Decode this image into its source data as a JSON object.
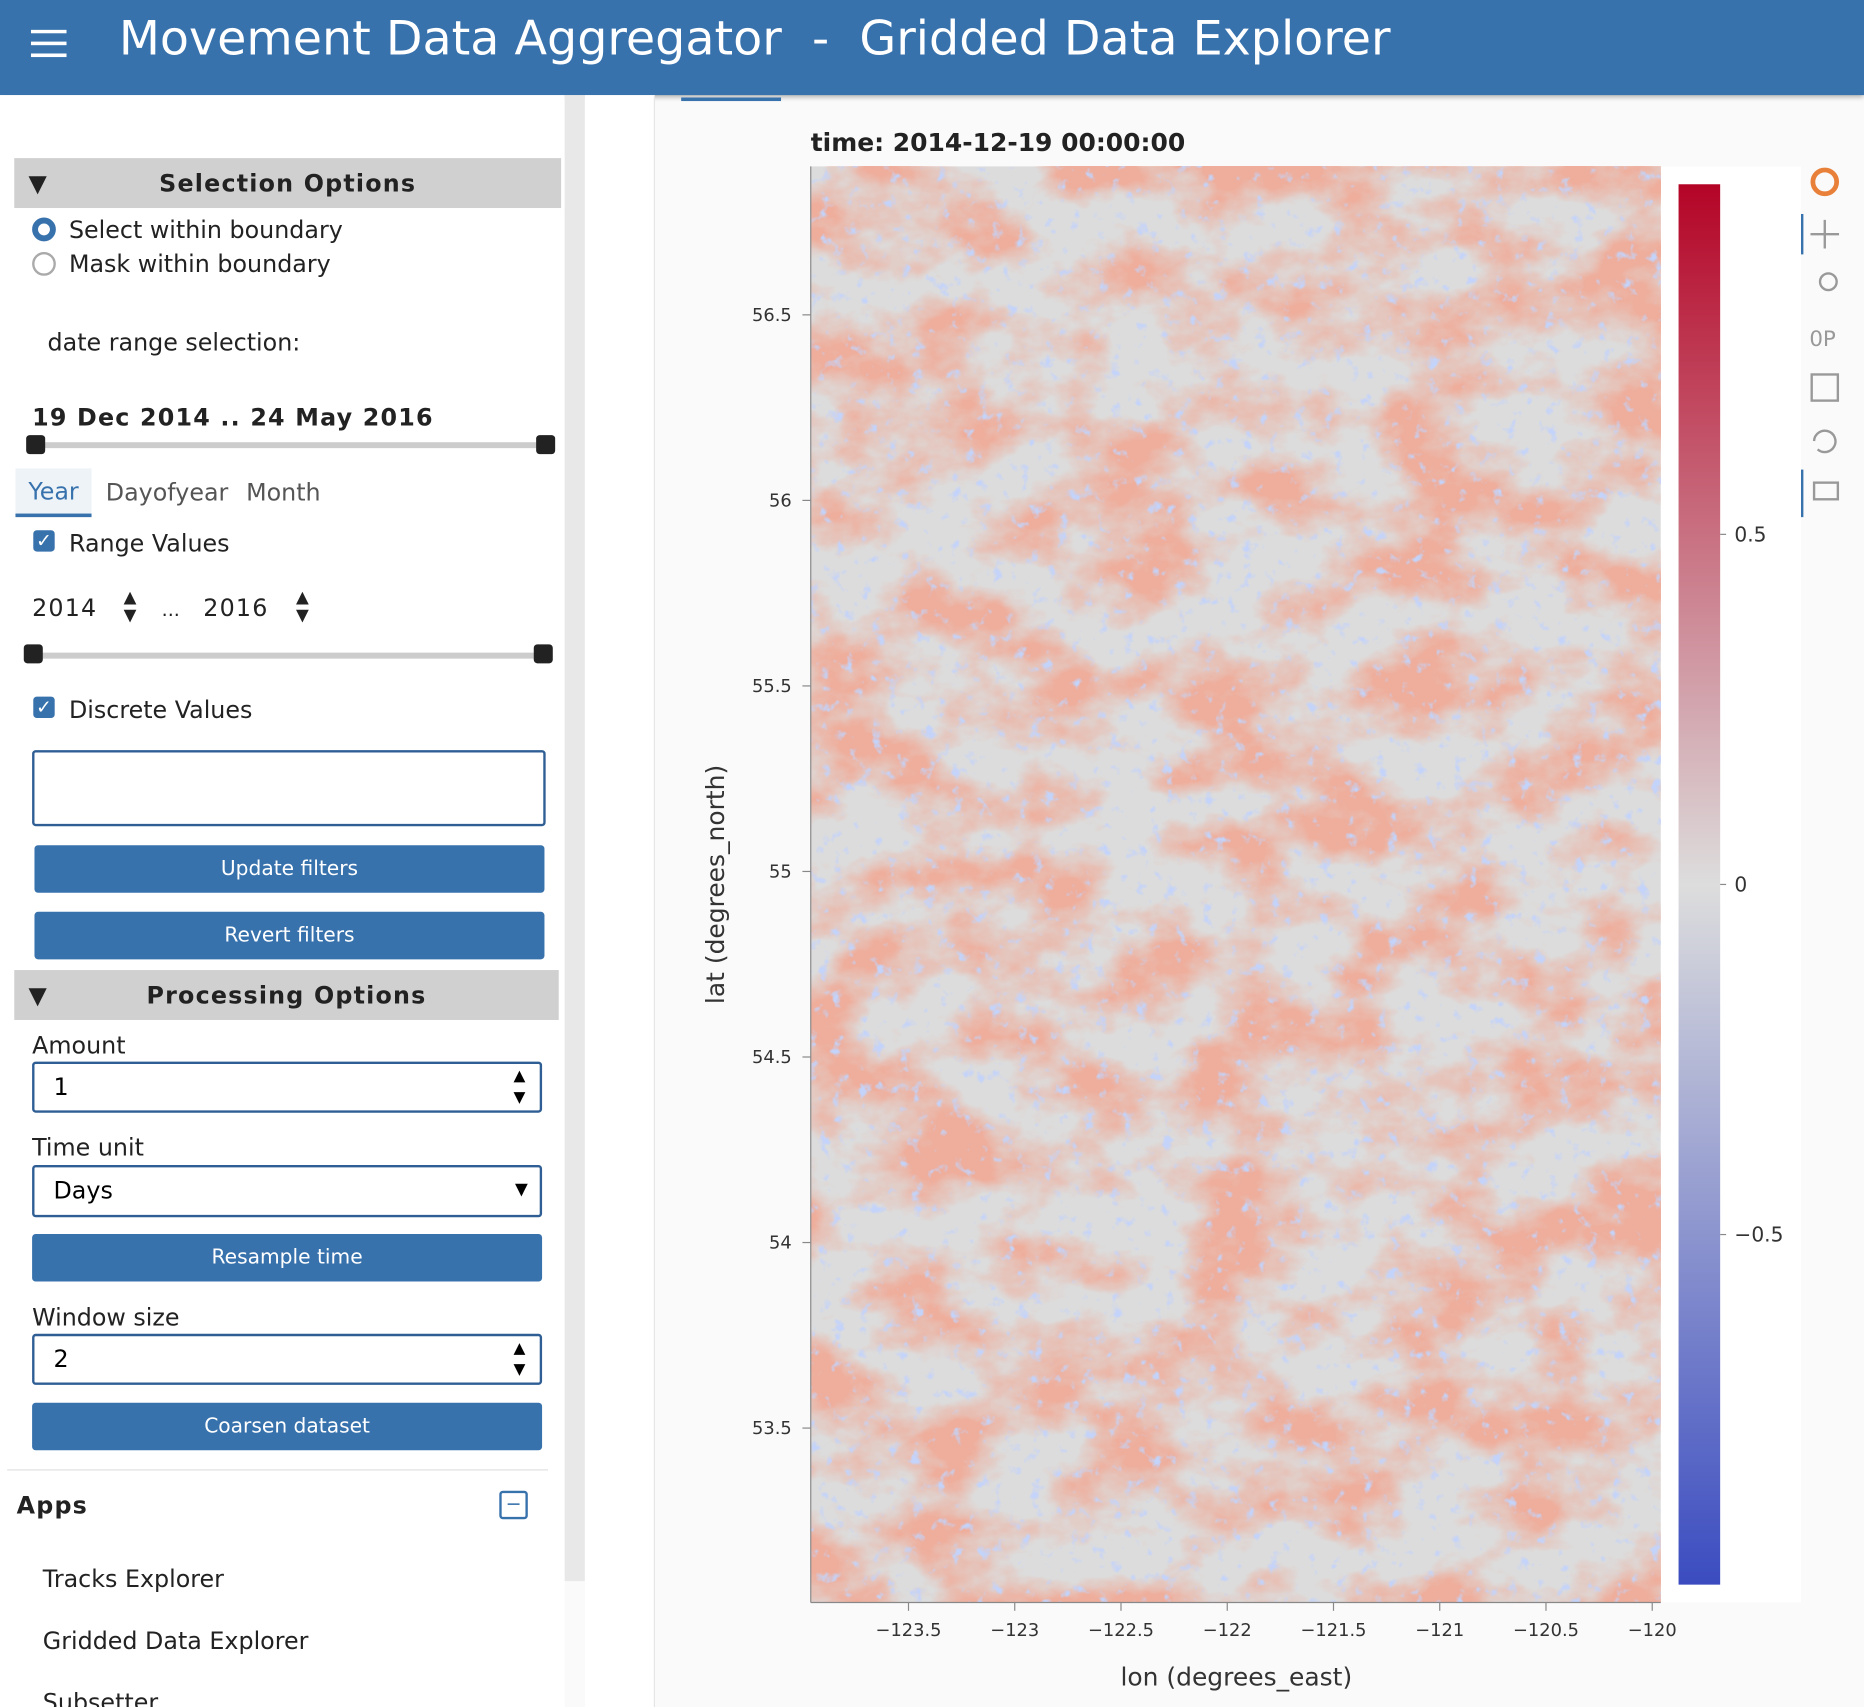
{
  "header": {
    "title": "Movement Data Aggregator  -  Gridded Data Explorer"
  },
  "sidebar": {
    "selection_title": "Selection Options",
    "radios": [
      "Select within boundary",
      "Mask within boundary"
    ],
    "date_range_label": "date range selection:",
    "date_range_value": "19 Dec 2014 .. 24 May 2016",
    "tabs": [
      "Year",
      "Dayofyear",
      "Month"
    ],
    "range_values": "Range Values",
    "year_start": "2014",
    "year_sep": "...",
    "year_end": "2016",
    "discrete_values": "Discrete Values",
    "update_button": "Update filters",
    "revert_button": "Revert filters",
    "processing_title": "Processing Options",
    "amount_label": "Amount",
    "amount": "1",
    "time_unit_label": "Time unit",
    "time_unit": "Days",
    "resample_button": "Resample time",
    "window_label": "Window size",
    "window": "2",
    "coarsen_button": "Coarsen dataset",
    "apps_title": "Apps",
    "apps": [
      "Tracks Explorer",
      "Gridded Data Explorer",
      "Subsetter"
    ]
  },
  "chart_data": {
    "type": "heatmap",
    "title": "time: 2014-12-19 00:00:00",
    "xlabel": "lon (degrees_east)",
    "ylabel": "lat (degrees_north)",
    "xlim": [
      -123.96,
      -119.96
    ],
    "ylim": [
      53.03,
      56.9
    ],
    "xticks": [
      {
        "value": -123.5,
        "label": "−123.5"
      },
      {
        "value": -123,
        "label": "−123"
      },
      {
        "value": -122.5,
        "label": "−122.5"
      },
      {
        "value": -122,
        "label": "−122"
      },
      {
        "value": -121.5,
        "label": "−121.5"
      },
      {
        "value": -121,
        "label": "−121"
      },
      {
        "value": -120.5,
        "label": "−120.5"
      },
      {
        "value": -120,
        "label": "−120"
      }
    ],
    "yticks": [
      53.5,
      54,
      54.5,
      55,
      55.5,
      56,
      56.5
    ],
    "colorbar": {
      "lim": [
        -1,
        1
      ],
      "ticks": [
        {
          "value": -0.5,
          "label": "−0.5"
        },
        0,
        0.5
      ],
      "colors": [
        "#3b4cc0",
        "#dddddd",
        "#b40426"
      ]
    }
  }
}
